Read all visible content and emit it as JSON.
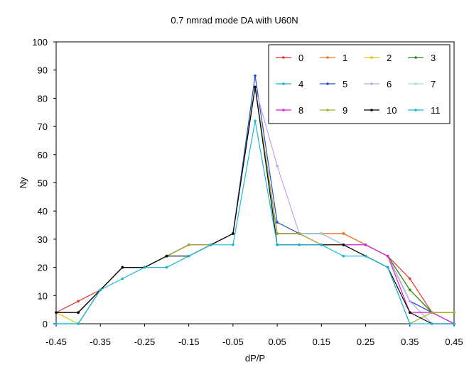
{
  "chart_data": {
    "type": "line",
    "title": "0.7 nmrad mode DA with U60N",
    "xlabel": "dP/P",
    "ylabel": "Ny",
    "xlim": [
      -0.45,
      0.45
    ],
    "ylim": [
      0,
      100
    ],
    "xticks": [
      "-0.45",
      "-0.35",
      "-0.25",
      "-0.15",
      "-0.05",
      "0.05",
      "0.15",
      "0.25",
      "0.35",
      "0.45"
    ],
    "yticks": [
      "0",
      "10",
      "20",
      "30",
      "40",
      "50",
      "60",
      "70",
      "80",
      "90",
      "100"
    ],
    "grid": false,
    "legend_position": "top-right",
    "x": [
      -0.45,
      -0.4,
      -0.35,
      -0.3,
      -0.25,
      -0.2,
      -0.15,
      -0.1,
      -0.05,
      0.0,
      0.05,
      0.1,
      0.15,
      0.2,
      0.25,
      0.3,
      0.35,
      0.4,
      0.45
    ],
    "series": [
      {
        "name": "0",
        "color": "#e8322b",
        "values": [
          4,
          8,
          12,
          20,
          20,
          24,
          28,
          28,
          32,
          84,
          32,
          32,
          32,
          32,
          28,
          24,
          16,
          4,
          0
        ]
      },
      {
        "name": "1",
        "color": "#f07820",
        "values": [
          4,
          4,
          12,
          20,
          20,
          24,
          28,
          28,
          32,
          84,
          32,
          32,
          32,
          32,
          28,
          24,
          12,
          4,
          4
        ]
      },
      {
        "name": "2",
        "color": "#f0c000",
        "values": [
          4,
          0,
          12,
          20,
          20,
          24,
          28,
          28,
          32,
          84,
          32,
          32,
          32,
          28,
          28,
          24,
          12,
          4,
          4
        ]
      },
      {
        "name": "3",
        "color": "#1e8c1e",
        "values": [
          4,
          4,
          12,
          20,
          20,
          24,
          28,
          28,
          32,
          84,
          32,
          32,
          32,
          28,
          28,
          24,
          12,
          4,
          4
        ]
      },
      {
        "name": "4",
        "color": "#20a8c8",
        "values": [
          0,
          0,
          12,
          20,
          20,
          24,
          28,
          28,
          32,
          84,
          32,
          32,
          32,
          28,
          28,
          24,
          8,
          4,
          0
        ]
      },
      {
        "name": "5",
        "color": "#1e50c8",
        "values": [
          4,
          4,
          12,
          20,
          20,
          24,
          28,
          28,
          32,
          88,
          36,
          32,
          32,
          28,
          28,
          24,
          8,
          4,
          0
        ]
      },
      {
        "name": "6",
        "color": "#c8a0e8",
        "values": [
          4,
          4,
          12,
          20,
          20,
          24,
          28,
          28,
          32,
          84,
          56,
          32,
          32,
          28,
          28,
          24,
          8,
          0,
          0
        ]
      },
      {
        "name": "7",
        "color": "#a8d8f0",
        "values": [
          4,
          4,
          12,
          20,
          20,
          24,
          28,
          28,
          32,
          84,
          32,
          32,
          32,
          28,
          28,
          24,
          4,
          4,
          0
        ]
      },
      {
        "name": "8",
        "color": "#e020d0",
        "values": [
          4,
          4,
          12,
          20,
          20,
          24,
          28,
          28,
          32,
          84,
          32,
          32,
          28,
          28,
          28,
          24,
          4,
          4,
          0
        ]
      },
      {
        "name": "9",
        "color": "#a0b020",
        "values": [
          4,
          4,
          12,
          20,
          20,
          24,
          28,
          28,
          32,
          84,
          32,
          32,
          28,
          28,
          24,
          20,
          0,
          4,
          4
        ]
      },
      {
        "name": "10",
        "color": "#000000",
        "values": [
          4,
          4,
          12,
          20,
          20,
          24,
          24,
          28,
          32,
          84,
          28,
          28,
          28,
          28,
          24,
          20,
          4,
          0,
          0
        ]
      },
      {
        "name": "11",
        "color": "#19b8d8",
        "values": [
          0,
          0,
          12,
          16,
          20,
          20,
          24,
          28,
          28,
          72,
          28,
          28,
          28,
          24,
          24,
          20,
          0,
          0,
          0
        ]
      }
    ]
  }
}
